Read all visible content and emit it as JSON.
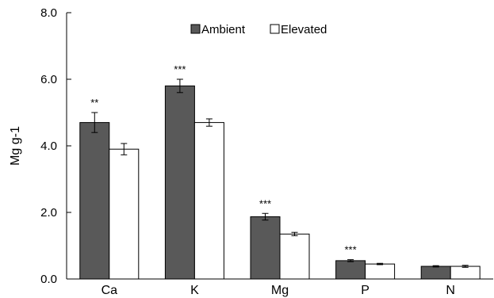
{
  "chart_data": {
    "type": "bar",
    "categories": [
      "Ca",
      "K",
      "Mg",
      "P",
      "N"
    ],
    "series": [
      {
        "name": "Ambient",
        "values": [
          4.7,
          5.8,
          1.87,
          0.55,
          0.38
        ],
        "errors": [
          0.3,
          0.2,
          0.1,
          0.03,
          0.02
        ],
        "color": "#595959"
      },
      {
        "name": "Elevated",
        "values": [
          3.9,
          4.7,
          1.35,
          0.45,
          0.38
        ],
        "errors": [
          0.17,
          0.11,
          0.05,
          0.02,
          0.03
        ],
        "color": "#ffffff"
      }
    ],
    "significance": [
      "**",
      "***",
      "***",
      "***",
      ""
    ],
    "ylabel": "Mg g-1",
    "ylim": [
      0,
      8
    ],
    "yticks": [
      "0.0",
      "2.0",
      "4.0",
      "6.0",
      "8.0"
    ],
    "grid": false,
    "legend_position": "top-center"
  }
}
